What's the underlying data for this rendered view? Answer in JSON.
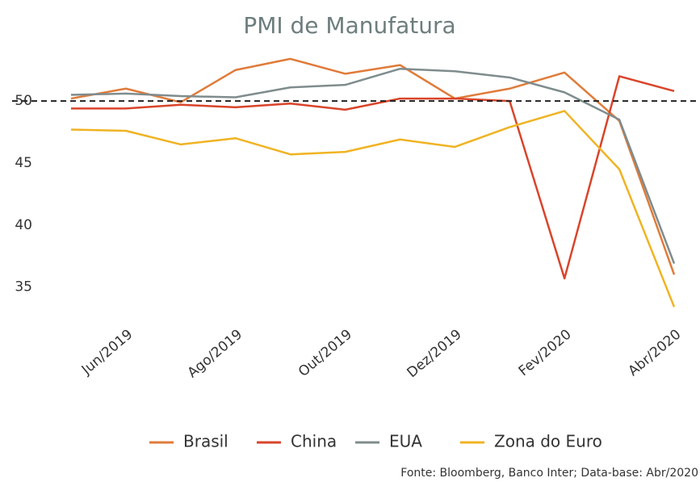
{
  "chart_data": {
    "type": "line",
    "title": "PMI de Manufatura",
    "categories": [
      null,
      "Jun/2019",
      null,
      "Ago/2019",
      null,
      "Out/2019",
      null,
      "Dez/2019",
      null,
      "Fev/2020",
      null,
      "Abr/2020"
    ],
    "series": [
      {
        "name": "Brasil",
        "color": "#e07b39",
        "values": [
          50.2,
          51.0,
          49.9,
          52.5,
          53.4,
          52.2,
          52.9,
          50.2,
          51.0,
          52.3,
          48.4,
          36.0
        ]
      },
      {
        "name": "China",
        "color": "#d9442a",
        "values": [
          49.4,
          49.4,
          49.7,
          49.5,
          49.8,
          49.3,
          50.2,
          50.2,
          50.0,
          35.7,
          52.0,
          50.8
        ]
      },
      {
        "name": "EUA",
        "color": "#7f8c8d",
        "values": [
          50.5,
          50.6,
          50.4,
          50.3,
          51.1,
          51.3,
          52.6,
          52.4,
          51.9,
          50.7,
          48.5,
          36.9
        ]
      },
      {
        "name": "Zona do Euro",
        "color": "#f0b323",
        "values": [
          47.7,
          47.6,
          46.5,
          47.0,
          45.7,
          45.9,
          46.9,
          46.3,
          47.9,
          49.2,
          44.5,
          33.4
        ]
      }
    ],
    "reference_line": 50,
    "ylim": [
      32.5,
      54.5
    ],
    "yticks": [
      35,
      40,
      45,
      50
    ],
    "grid": false,
    "legend": "bottom",
    "source": "Fonte: Bloomberg, Banco Inter; Data-base: Abr/2020"
  }
}
